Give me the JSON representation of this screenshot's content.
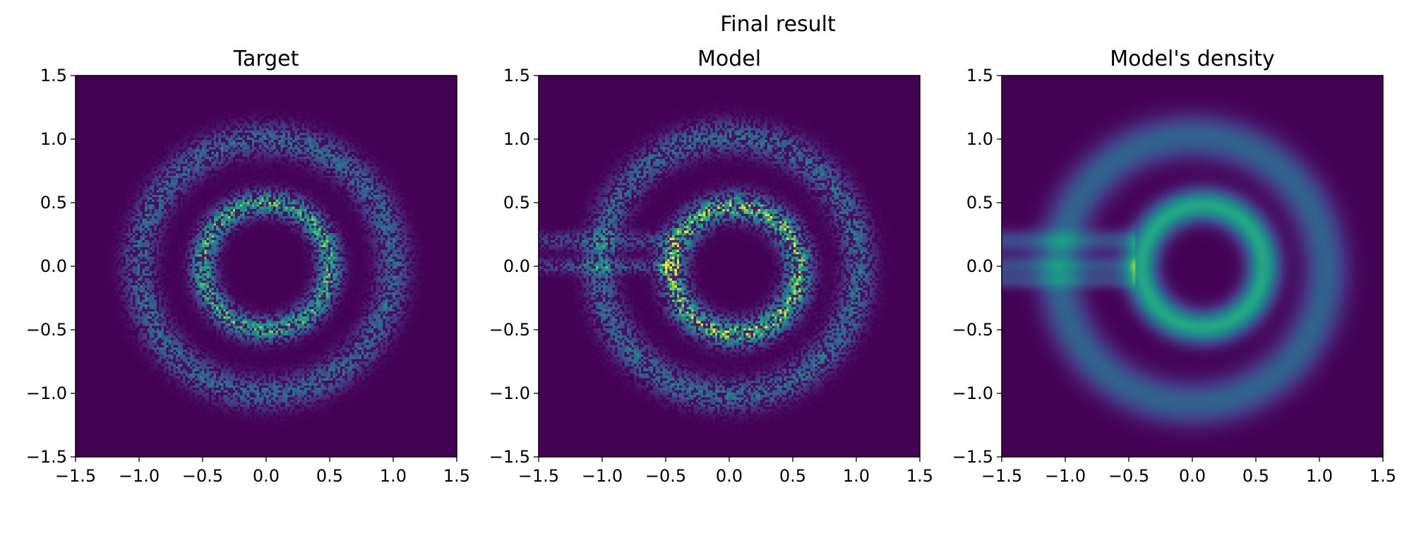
{
  "figure": {
    "suptitle": "Final result"
  },
  "chart_data": [
    {
      "type": "heatmap",
      "title": "Target",
      "xlim": [
        -1.5,
        1.5
      ],
      "ylim": [
        -1.5,
        1.5
      ],
      "xticks": [
        "−1.5",
        "−1.0",
        "−0.5",
        "0.0",
        "0.5",
        "1.0",
        "1.5"
      ],
      "yticks": [
        "1.5",
        "1.0",
        "0.5",
        "0.0",
        "−0.5",
        "−1.0",
        "−1.5"
      ],
      "colormap": "viridis",
      "rings": [
        {
          "center": [
            0,
            0
          ],
          "radius": 1.0,
          "width": 0.09,
          "intensity": 0.32
        },
        {
          "center": [
            0,
            0
          ],
          "radius": 0.5,
          "width": 0.07,
          "intensity": 0.55
        }
      ]
    },
    {
      "type": "heatmap",
      "title": "Model",
      "xlim": [
        -1.5,
        1.5
      ],
      "ylim": [
        -1.5,
        1.5
      ],
      "xticks": [
        "−1.5",
        "−1.0",
        "−0.5",
        "0.0",
        "0.5",
        "1.0",
        "1.5"
      ],
      "yticks": [
        "1.5",
        "1.0",
        "0.5",
        "0.0",
        "−0.5",
        "−1.0",
        "−1.5"
      ],
      "colormap": "viridis",
      "rings": [
        {
          "center": [
            0.0,
            0.0
          ],
          "radius": 1.02,
          "width": 0.09,
          "intensity": 0.33
        },
        {
          "center": [
            0.05,
            -0.03
          ],
          "radius": 0.5,
          "width": 0.08,
          "intensity": 0.6
        }
      ],
      "streaks": [
        {
          "x": [
            -1.5,
            -0.4
          ],
          "y": 0.2,
          "width": 0.05,
          "intensity": 0.2
        },
        {
          "x": [
            -1.5,
            -0.4
          ],
          "y": 0.0,
          "width": 0.04,
          "intensity": 0.22
        }
      ]
    },
    {
      "type": "heatmap",
      "title": "Model's density",
      "xlim": [
        -1.5,
        1.5
      ],
      "ylim": [
        -1.5,
        1.5
      ],
      "xticks": [
        "−1.5",
        "−1.0",
        "−0.5",
        "0.0",
        "0.5",
        "1.0",
        "1.5"
      ],
      "yticks": [
        "1.5",
        "1.0",
        "0.5",
        "0.0",
        "−0.5",
        "−1.0",
        "−1.5"
      ],
      "colormap": "viridis",
      "rings": [
        {
          "center": [
            0.0,
            -0.03
          ],
          "radius": 1.05,
          "width": 0.12,
          "intensity": 0.4
        },
        {
          "center": [
            0.08,
            0.0
          ],
          "radius": 0.48,
          "width": 0.09,
          "intensity": 0.75
        }
      ],
      "streaks": [
        {
          "x": [
            -1.5,
            -0.45
          ],
          "y": 0.2,
          "width": 0.06,
          "intensity": 0.3
        },
        {
          "x": [
            -1.5,
            -0.45
          ],
          "y": 0.0,
          "width": 0.06,
          "intensity": 0.3
        },
        {
          "x": [
            -1.5,
            -0.45
          ],
          "y": -0.12,
          "width": 0.04,
          "intensity": 0.22
        }
      ]
    }
  ]
}
